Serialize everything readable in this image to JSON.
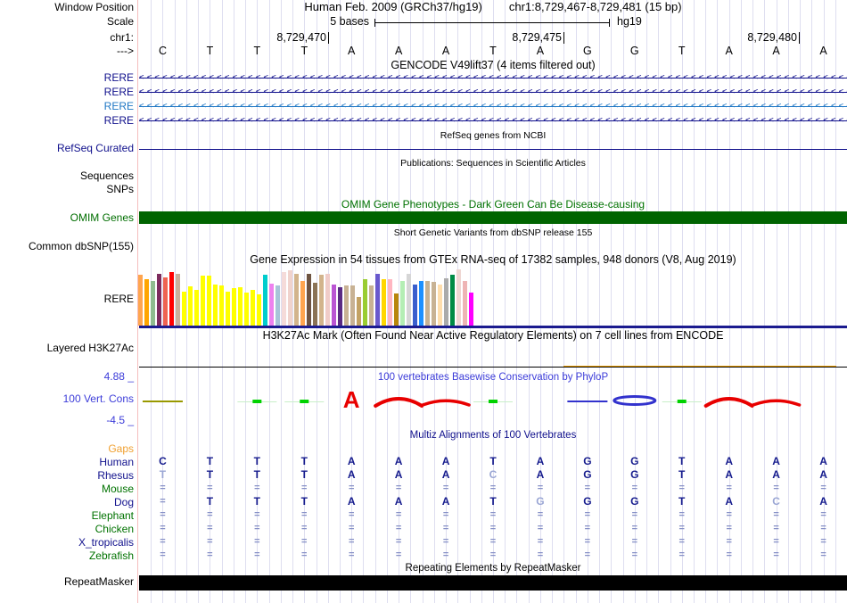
{
  "header": {
    "assembly_title": "Human Feb. 2009 (GRCh37/hg19)",
    "position_title": "chr1:8,729,467-8,729,481 (15 bp)",
    "scale_label": "5 bases",
    "assembly_short": "hg19",
    "position_ticks": [
      "8,729,470",
      "8,729,475",
      "8,729,480"
    ],
    "sequence": [
      "C",
      "T",
      "T",
      "T",
      "A",
      "A",
      "A",
      "T",
      "A",
      "G",
      "G",
      "T",
      "A",
      "A",
      "A"
    ]
  },
  "left_labels": [
    {
      "id": "window-position",
      "text": "Window Position",
      "color": "#000000"
    },
    {
      "id": "scale",
      "text": "Scale",
      "color": "#000000"
    },
    {
      "id": "chr1",
      "text": "chr1:",
      "color": "#000000"
    },
    {
      "id": "strand",
      "text": "--->",
      "color": "#000000"
    },
    {
      "id": "rere-1",
      "text": "RERE",
      "color": "#10108C"
    },
    {
      "id": "rere-2",
      "text": "RERE",
      "color": "#10108C"
    },
    {
      "id": "rere-3",
      "text": "RERE",
      "color": "#1F77C4"
    },
    {
      "id": "rere-4",
      "text": "RERE",
      "color": "#10108C"
    },
    {
      "id": "refseq-curated",
      "text": "RefSeq Curated",
      "color": "#10108C"
    },
    {
      "id": "sequences",
      "text": "Sequences",
      "color": "#000000"
    },
    {
      "id": "snps",
      "text": "SNPs",
      "color": "#000000"
    },
    {
      "id": "omim-genes",
      "text": "OMIM Genes",
      "color": "#006E00"
    },
    {
      "id": "common-dbsnp",
      "text": "Common dbSNP(155)",
      "color": "#000000"
    },
    {
      "id": "rere-gtex",
      "text": "RERE",
      "color": "#000000"
    },
    {
      "id": "layered-h3k27ac",
      "text": "Layered H3K27Ac",
      "color": "#000000"
    },
    {
      "id": "cons-max",
      "text": "4.88 _",
      "color": "#3C3CD9"
    },
    {
      "id": "vert-cons",
      "text": "100 Vert. Cons",
      "color": "#3C3CD9"
    },
    {
      "id": "cons-min",
      "text": "-4.5 _",
      "color": "#3C3CD9"
    },
    {
      "id": "gaps",
      "text": "Gaps",
      "color": "#F0A030"
    },
    {
      "id": "human",
      "text": "Human",
      "color": "#10108C"
    },
    {
      "id": "rhesus",
      "text": "Rhesus",
      "color": "#10108C"
    },
    {
      "id": "mouse",
      "text": "Mouse",
      "color": "#007200"
    },
    {
      "id": "dog",
      "text": "Dog",
      "color": "#10108C"
    },
    {
      "id": "elephant",
      "text": "Elephant",
      "color": "#007200"
    },
    {
      "id": "chicken",
      "text": "Chicken",
      "color": "#007200"
    },
    {
      "id": "x-tropicalis",
      "text": "X_tropicalis",
      "color": "#10108C"
    },
    {
      "id": "zebrafish",
      "text": "Zebrafish",
      "color": "#007200"
    },
    {
      "id": "repeatmasker",
      "text": "RepeatMasker",
      "color": "#000000"
    }
  ],
  "titles": [
    {
      "id": "gencode-title",
      "text": "GENCODE V49lift37 (4 items filtered out)",
      "color": "#000000"
    },
    {
      "id": "refseq-title",
      "text": "RefSeq genes from NCBI",
      "color": "#000000"
    },
    {
      "id": "publications-title",
      "text": "Publications: Sequences in Scientific Articles",
      "color": "#000000"
    },
    {
      "id": "omim-title",
      "text": "OMIM Gene Phenotypes - Dark Green Can Be Disease-causing",
      "color": "#007200"
    },
    {
      "id": "dbsnp-title",
      "text": "Short Genetic Variants from dbSNP release 155",
      "color": "#000000"
    },
    {
      "id": "gtex-title",
      "text": "Gene Expression in 54 tissues from GTEx RNA-seq of 17382 samples, 948 donors (V8, Aug 2019)",
      "color": "#000000"
    },
    {
      "id": "h3k27ac-title",
      "text": "H3K27Ac Mark (Often Found Near Active Regulatory Elements) on 7 cell lines from ENCODE",
      "color": "#000000"
    },
    {
      "id": "cons-title",
      "text": "100 vertebrates Basewise Conservation by PhyloP",
      "color": "#3C3CD9"
    },
    {
      "id": "multiz-title",
      "text": "Multiz Alignments of 100 Vertebrates",
      "color": "#10108C"
    },
    {
      "id": "repeat-title",
      "text": "Repeating Elements by RepeatMasker",
      "color": "#000000"
    }
  ],
  "gencode_rows": [
    {
      "label": "RERE",
      "color": "#10108C"
    },
    {
      "label": "RERE",
      "color": "#10108C"
    },
    {
      "label": "RERE",
      "color": "#1F77C4"
    },
    {
      "label": "RERE",
      "color": "#10108C"
    }
  ],
  "chart_data": [
    {
      "type": "bar",
      "title": "Gene Expression in 54 tissues from GTEx RNA-seq of 17382 samples, 948 donors (V8, Aug 2019)",
      "gene": "RERE",
      "note": "bar heights in pixels (relative expression per GTEx tissue, tissue colors per GTEx scheme)",
      "values": [
        57,
        52,
        50,
        58,
        54,
        60,
        58,
        38,
        44,
        40,
        56,
        56,
        46,
        45,
        38,
        42,
        43,
        37,
        40,
        35,
        57,
        47,
        45,
        60,
        62,
        58,
        50,
        58,
        48,
        57,
        58,
        46,
        43,
        45,
        45,
        32,
        52,
        45,
        58,
        52,
        52,
        36,
        50,
        58,
        46,
        50,
        50,
        49,
        46,
        53,
        57,
        63,
        50,
        37
      ],
      "colors": [
        "#FFA54F",
        "#FFA500",
        "#8FBC8F",
        "#7D2B5E",
        "#EE6352",
        "#FF0000",
        "#C9B19C",
        "#FFFF00",
        "#FFFF00",
        "#FFFF00",
        "#FFFF00",
        "#FFFF00",
        "#FFFF00",
        "#FFFF00",
        "#FFFF00",
        "#FFFF00",
        "#FFFF00",
        "#FFFF00",
        "#FFFF00",
        "#FFFF00",
        "#00CDCD",
        "#EE82EE",
        "#A8C4D8",
        "#F5DBD9",
        "#F0D3CD",
        "#D2B48C",
        "#FFA54F",
        "#6E5442",
        "#8B7355",
        "#D2B48C",
        "#F0CCC8",
        "#BA55D3",
        "#5A2A83",
        "#C8B294",
        "#C8B294",
        "#C3A264",
        "#9ACD32",
        "#C8B294",
        "#6959CD",
        "#FFD700",
        "#FFB6C1",
        "#B8860B",
        "#B4EEB4",
        "#D6D6D6",
        "#3A5FCD",
        "#1E90FF",
        "#C8B294",
        "#C8B294",
        "#FFDEAD",
        "#ABABAB",
        "#008B45",
        "#EFD7D3",
        "#EEB4B4",
        "#FF00FF"
      ],
      "baseline_color": "#1B1B8F"
    },
    {
      "type": "area",
      "title": "100 vertebrates Basewise Conservation by PhyloP",
      "ylim": [
        -4.5,
        4.88
      ],
      "marks": [
        {
          "base": 1,
          "type": "dash",
          "color": "#999900"
        },
        {
          "base": 2,
          "type": "none",
          "color": ""
        },
        {
          "base": 3,
          "type": "dot",
          "color": "#00D200"
        },
        {
          "base": 4,
          "type": "dot",
          "color": "#00D200"
        },
        {
          "base": 5,
          "type": "letter",
          "text": "A",
          "color": "#E80000"
        },
        {
          "base": 6,
          "type": "peak",
          "color": "#E80000"
        },
        {
          "base": 7,
          "type": "arc",
          "color": "#E80000"
        },
        {
          "base": 8,
          "type": "dot",
          "color": "#00D200"
        },
        {
          "base": 9,
          "type": "none",
          "color": ""
        },
        {
          "base": 10,
          "type": "dash",
          "color": "#3232CD"
        },
        {
          "base": 11,
          "type": "ellipse",
          "color": "#3232CD"
        },
        {
          "base": 12,
          "type": "dot",
          "color": "#00D200"
        },
        {
          "base": 13,
          "type": "peak",
          "color": "#E80000"
        },
        {
          "base": 14,
          "type": "arc",
          "color": "#E80000"
        },
        {
          "base": 15,
          "type": "none",
          "color": ""
        }
      ]
    }
  ],
  "multiz": {
    "title": "Multiz Alignments of 100 Vertebrates",
    "letter_color": "#151B8D",
    "letter_light_color": "#9AA6D4",
    "equals_color": "#8791C7",
    "species": [
      {
        "name": "Gaps",
        "cells": [
          "",
          "",
          "",
          "",
          "",
          "",
          "",
          "",
          "",
          "",
          "",
          "",
          "",
          "",
          ""
        ]
      },
      {
        "name": "Human",
        "cells": [
          "C",
          "T",
          "T",
          "T",
          "A",
          "A",
          "A",
          "T",
          "A",
          "G",
          "G",
          "T",
          "A",
          "A",
          "A"
        ]
      },
      {
        "name": "Rhesus",
        "cells": [
          "T*",
          "T",
          "T",
          "T",
          "A",
          "A",
          "A",
          "C*",
          "A",
          "G",
          "G",
          "T",
          "A",
          "A",
          "A"
        ]
      },
      {
        "name": "Mouse",
        "cells": [
          "=",
          "=",
          "=",
          "=",
          "=",
          "=",
          "=",
          "=",
          "=",
          "=",
          "=",
          "=",
          "=",
          "=",
          "="
        ]
      },
      {
        "name": "Dog",
        "cells": [
          "=",
          "T",
          "T",
          "T",
          "A",
          "A",
          "A",
          "T",
          "G*",
          "G",
          "G",
          "T",
          "A",
          "C*",
          "A"
        ]
      },
      {
        "name": "Elephant",
        "cells": [
          "=",
          "=",
          "=",
          "=",
          "=",
          "=",
          "=",
          "=",
          "=",
          "=",
          "=",
          "=",
          "=",
          "=",
          "="
        ]
      },
      {
        "name": "Chicken",
        "cells": [
          "=",
          "=",
          "=",
          "=",
          "=",
          "=",
          "=",
          "=",
          "=",
          "=",
          "=",
          "=",
          "=",
          "=",
          "="
        ]
      },
      {
        "name": "X_tropicalis",
        "cells": [
          "=",
          "=",
          "=",
          "=",
          "=",
          "=",
          "=",
          "=",
          "=",
          "=",
          "=",
          "=",
          "=",
          "=",
          "="
        ]
      },
      {
        "name": "Zebrafish",
        "cells": [
          "=",
          "=",
          "=",
          "=",
          "=",
          "=",
          "=",
          "=",
          "=",
          "=",
          "=",
          "=",
          "=",
          "=",
          "="
        ]
      }
    ]
  },
  "bars": {
    "omim_color": "#006400",
    "refseq_line_color": "#10108C",
    "h3k27ac_line_color": "#000000",
    "h3k27ac_signal_color": "#F0A000",
    "repeatmasker_color": "#000000"
  }
}
